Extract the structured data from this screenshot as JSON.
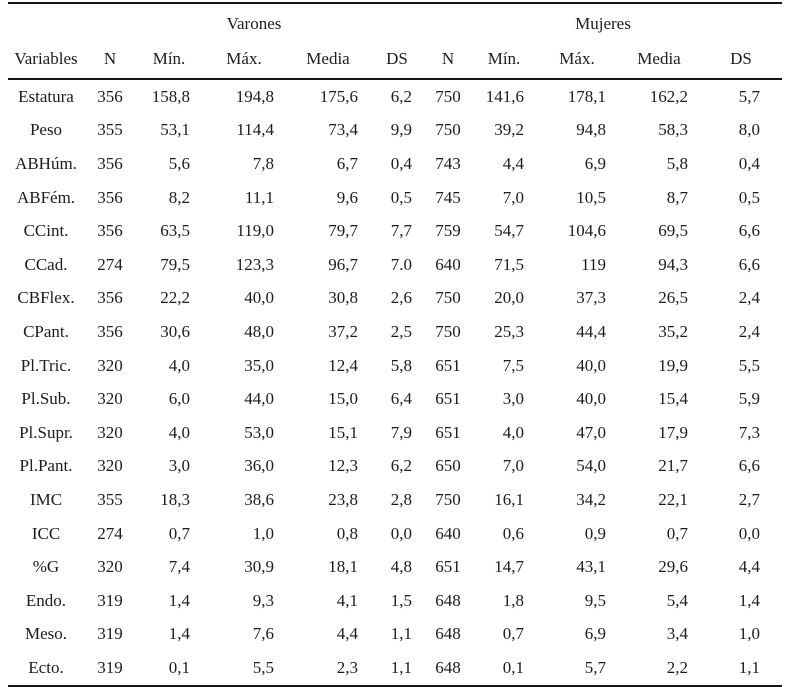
{
  "style": {
    "background": "#ffffff",
    "text_color": "#1c1c1c",
    "rule_color": "#141414"
  },
  "table": {
    "groups": [
      {
        "label": "Varones",
        "span": 5
      },
      {
        "label": "Mujeres",
        "span": 5
      }
    ],
    "columns": [
      "Variables",
      "N",
      "Mín.",
      "Máx.",
      "Media",
      "DS",
      "N",
      "Mín.",
      "Máx.",
      "Media",
      "DS"
    ],
    "rows": [
      [
        "Estatura",
        "356",
        "158,8",
        "194,8",
        "175,6",
        "6,2",
        "750",
        "141,6",
        "178,1",
        "162,2",
        "5,7"
      ],
      [
        "Peso",
        "355",
        "53,1",
        "114,4",
        "73,4",
        "9,9",
        "750",
        "39,2",
        "94,8",
        "58,3",
        "8,0"
      ],
      [
        "ABHúm.",
        "356",
        "5,6",
        "7,8",
        "6,7",
        "0,4",
        "743",
        "4,4",
        "6,9",
        "5,8",
        "0,4"
      ],
      [
        "ABFém.",
        "356",
        "8,2",
        "11,1",
        "9,6",
        "0,5",
        "745",
        "7,0",
        "10,5",
        "8,7",
        "0,5"
      ],
      [
        "CCint.",
        "356",
        "63,5",
        "119,0",
        "79,7",
        "7,7",
        "759",
        "54,7",
        "104,6",
        "69,5",
        "6,6"
      ],
      [
        "CCad.",
        "274",
        "79,5",
        "123,3",
        "96,7",
        "7.0",
        "640",
        "71,5",
        "119",
        "94,3",
        "6,6"
      ],
      [
        "CBFlex.",
        "356",
        "22,2",
        "40,0",
        "30,8",
        "2,6",
        "750",
        "20,0",
        "37,3",
        "26,5",
        "2,4"
      ],
      [
        "CPant.",
        "356",
        "30,6",
        "48,0",
        "37,2",
        "2,5",
        "750",
        "25,3",
        "44,4",
        "35,2",
        "2,4"
      ],
      [
        "Pl.Tric.",
        "320",
        "4,0",
        "35,0",
        "12,4",
        "5,8",
        "651",
        "7,5",
        "40,0",
        "19,9",
        "5,5"
      ],
      [
        "Pl.Sub.",
        "320",
        "6,0",
        "44,0",
        "15,0",
        "6,4",
        "651",
        "3,0",
        "40,0",
        "15,4",
        "5,9"
      ],
      [
        "Pl.Supr.",
        "320",
        "4,0",
        "53,0",
        "15,1",
        "7,9",
        "651",
        "4,0",
        "47,0",
        "17,9",
        "7,3"
      ],
      [
        "Pl.Pant.",
        "320",
        "3,0",
        "36,0",
        "12,3",
        "6,2",
        "650",
        "7,0",
        "54,0",
        "21,7",
        "6,6"
      ],
      [
        "IMC",
        "355",
        "18,3",
        "38,6",
        "23,8",
        "2,8",
        "750",
        "16,1",
        "34,2",
        "22,1",
        "2,7"
      ],
      [
        "ICC",
        "274",
        "0,7",
        "1,0",
        "0,8",
        "0,0",
        "640",
        "0,6",
        "0,9",
        "0,7",
        "0,0"
      ],
      [
        "%G",
        "320",
        "7,4",
        "30,9",
        "18,1",
        "4,8",
        "651",
        "14,7",
        "43,1",
        "29,6",
        "4,4"
      ],
      [
        "Endo.",
        "319",
        "1,4",
        "9,3",
        "4,1",
        "1,5",
        "648",
        "1,8",
        "9,5",
        "5,4",
        "1,4"
      ],
      [
        "Meso.",
        "319",
        "1,4",
        "7,6",
        "4,4",
        "1,1",
        "648",
        "0,7",
        "6,9",
        "3,4",
        "1,0"
      ],
      [
        "Ecto.",
        "319",
        "0,1",
        "5,5",
        "2,3",
        "1,1",
        "648",
        "0,1",
        "5,7",
        "2,2",
        "1,1"
      ]
    ]
  }
}
